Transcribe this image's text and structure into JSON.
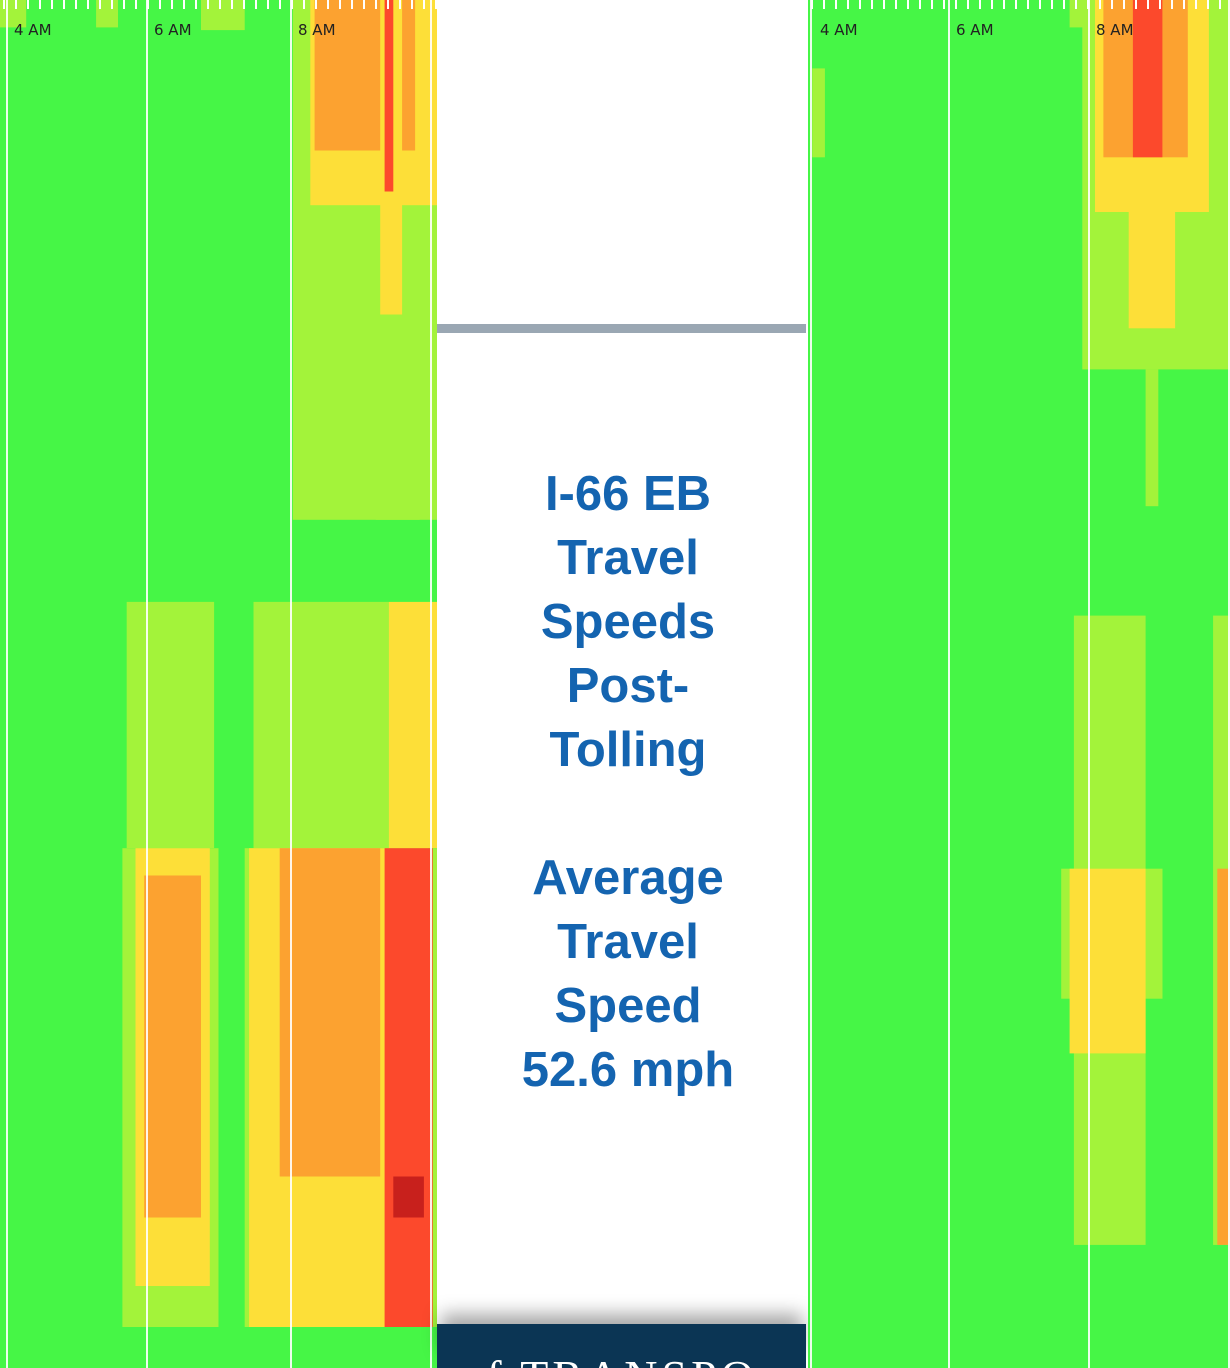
{
  "heading": {
    "line1": "I-66 EB",
    "line2": "Travel",
    "line3": "Speeds",
    "line4": "Post-",
    "line5": "Tolling",
    "line6": "Average",
    "line7": "Travel",
    "line8": "Speed",
    "line9": "52.6 mph"
  },
  "footer": {
    "text": "t of TRANSPO"
  },
  "colors": {
    "free_flow": "#46f646",
    "light_slow": "#a3f33a",
    "moderate": "#fddf38",
    "slow": "#fca230",
    "congested": "#fc492c",
    "severe": "#c8201c",
    "heading": "#1464b0",
    "footer_band": "#0b3554",
    "divider": "#9aa7b3"
  },
  "chart_data": [
    {
      "type": "heatmap",
      "time_ticks": [
        "4 AM",
        "6 AM",
        "8 AM"
      ],
      "speed_levels": [
        "free_flow",
        "light_slow",
        "moderate",
        "slow",
        "congested",
        "severe"
      ],
      "congestion_cells": [
        {
          "t0": 0,
          "t1": 0.06,
          "y0": 0,
          "y1": 0.02,
          "level": "light_slow"
        },
        {
          "t0": 0.22,
          "t1": 0.27,
          "y0": 0,
          "y1": 0.02,
          "level": "light_slow"
        },
        {
          "t0": 0.46,
          "t1": 0.56,
          "y0": 0,
          "y1": 0.022,
          "level": "light_slow"
        },
        {
          "t0": 0.67,
          "t1": 1.0,
          "y0": 0,
          "y1": 0.38,
          "level": "light_slow"
        },
        {
          "t0": 0.71,
          "t1": 1.0,
          "y0": 0,
          "y1": 0.15,
          "level": "moderate"
        },
        {
          "t0": 0.72,
          "t1": 0.95,
          "y0": 0.0,
          "y1": 0.11,
          "level": "slow"
        },
        {
          "t0": 0.87,
          "t1": 0.92,
          "y0": 0.0,
          "y1": 0.23,
          "level": "moderate"
        },
        {
          "t0": 0.88,
          "t1": 0.9,
          "y0": 0.0,
          "y1": 0.14,
          "level": "congested"
        },
        {
          "t0": 0.76,
          "t1": 0.99,
          "y0": 0.23,
          "y1": 0.265,
          "level": "light_slow"
        },
        {
          "t0": 0.86,
          "t1": 0.96,
          "y0": 0.265,
          "y1": 0.38,
          "level": "light_slow"
        },
        {
          "t0": 0.29,
          "t1": 0.49,
          "y0": 0.44,
          "y1": 0.62,
          "level": "light_slow"
        },
        {
          "t0": 0.58,
          "t1": 0.89,
          "y0": 0.44,
          "y1": 0.62,
          "level": "light_slow"
        },
        {
          "t0": 0.89,
          "t1": 1.0,
          "y0": 0.44,
          "y1": 0.62,
          "level": "moderate"
        },
        {
          "t0": 0.28,
          "t1": 0.5,
          "y0": 0.62,
          "y1": 0.97,
          "level": "light_slow"
        },
        {
          "t0": 0.56,
          "t1": 1.0,
          "y0": 0.62,
          "y1": 0.97,
          "level": "light_slow"
        },
        {
          "t0": 0.31,
          "t1": 0.48,
          "y0": 0.62,
          "y1": 0.94,
          "level": "moderate"
        },
        {
          "t0": 0.57,
          "t1": 0.98,
          "y0": 0.62,
          "y1": 0.97,
          "level": "moderate"
        },
        {
          "t0": 0.33,
          "t1": 0.46,
          "y0": 0.64,
          "y1": 0.89,
          "level": "slow"
        },
        {
          "t0": 0.64,
          "t1": 0.87,
          "y0": 0.62,
          "y1": 0.86,
          "level": "slow"
        },
        {
          "t0": 0.88,
          "t1": 0.99,
          "y0": 0.62,
          "y1": 0.97,
          "level": "congested"
        },
        {
          "t0": 0.9,
          "t1": 0.97,
          "y0": 0.86,
          "y1": 0.89,
          "level": "severe"
        }
      ]
    },
    {
      "type": "heatmap",
      "time_ticks": [
        "4 AM",
        "6 AM",
        "8 AM"
      ],
      "speed_levels": [
        "free_flow",
        "light_slow",
        "moderate",
        "slow",
        "congested",
        "severe"
      ],
      "congestion_cells": [
        {
          "t0": 0.01,
          "t1": 0.04,
          "y0": 0.05,
          "y1": 0.115,
          "level": "light_slow"
        },
        {
          "t0": 0.62,
          "t1": 1.0,
          "y0": 0,
          "y1": 0.02,
          "level": "light_slow"
        },
        {
          "t0": 0.65,
          "t1": 1.0,
          "y0": 0,
          "y1": 0.27,
          "level": "light_slow"
        },
        {
          "t0": 0.68,
          "t1": 0.95,
          "y0": 0,
          "y1": 0.155,
          "level": "moderate"
        },
        {
          "t0": 0.7,
          "t1": 0.9,
          "y0": 0,
          "y1": 0.115,
          "level": "slow"
        },
        {
          "t0": 0.77,
          "t1": 0.84,
          "y0": 0,
          "y1": 0.115,
          "level": "congested"
        },
        {
          "t0": 0.76,
          "t1": 0.87,
          "y0": 0.155,
          "y1": 0.24,
          "level": "moderate"
        },
        {
          "t0": 0.8,
          "t1": 0.83,
          "y0": 0.27,
          "y1": 0.37,
          "level": "light_slow"
        },
        {
          "t0": 0.63,
          "t1": 0.8,
          "y0": 0.45,
          "y1": 0.91,
          "level": "light_slow"
        },
        {
          "t0": 0.96,
          "t1": 1.0,
          "y0": 0.45,
          "y1": 0.91,
          "level": "light_slow"
        },
        {
          "t0": 0.6,
          "t1": 0.84,
          "y0": 0.635,
          "y1": 0.73,
          "level": "light_slow"
        },
        {
          "t0": 0.62,
          "t1": 0.8,
          "y0": 0.635,
          "y1": 0.77,
          "level": "moderate"
        },
        {
          "t0": 0.97,
          "t1": 1.0,
          "y0": 0.635,
          "y1": 0.91,
          "level": "slow"
        }
      ]
    }
  ]
}
